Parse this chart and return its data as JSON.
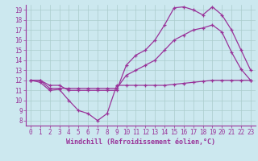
{
  "background_color": "#cce8ef",
  "grid_color": "#aacccc",
  "line_color": "#993399",
  "xlabel": "Windchill (Refroidissement éolien,°C)",
  "xlim": [
    -0.5,
    23.5
  ],
  "ylim": [
    7.5,
    19.5
  ],
  "yticks": [
    8,
    9,
    10,
    11,
    12,
    13,
    14,
    15,
    16,
    17,
    18,
    19
  ],
  "xticks": [
    0,
    1,
    2,
    3,
    4,
    5,
    6,
    7,
    8,
    9,
    10,
    11,
    12,
    13,
    14,
    15,
    16,
    17,
    18,
    19,
    20,
    21,
    22,
    23
  ],
  "line1_x": [
    0,
    1,
    2,
    3,
    4,
    5,
    6,
    7,
    8,
    9,
    10,
    11,
    12,
    13,
    14,
    15,
    16,
    17,
    18,
    19,
    20,
    21,
    22,
    23
  ],
  "line1_y": [
    12,
    11.8,
    11,
    11.1,
    10,
    9,
    8.7,
    8,
    8.7,
    11.5,
    11.5,
    11.5,
    11.5,
    11.5,
    11.5,
    11.6,
    11.7,
    11.8,
    11.9,
    12.0,
    12.0,
    12.0,
    12.0,
    12.0
  ],
  "line2_x": [
    0,
    1,
    2,
    3,
    4,
    5,
    6,
    7,
    8,
    9,
    10,
    11,
    12,
    13,
    14,
    15,
    16,
    17,
    18,
    19,
    20,
    21,
    22,
    23
  ],
  "line2_y": [
    12,
    12,
    11.2,
    11.2,
    11.2,
    11.2,
    11.2,
    11.2,
    11.2,
    11.2,
    12.5,
    13.0,
    13.5,
    14.0,
    15.0,
    16.0,
    16.5,
    17.0,
    17.2,
    17.5,
    16.8,
    14.8,
    13.1,
    12.0
  ],
  "line3_x": [
    0,
    1,
    2,
    3,
    4,
    5,
    6,
    7,
    8,
    9,
    10,
    11,
    12,
    13,
    14,
    15,
    16,
    17,
    18,
    19,
    20,
    21,
    22,
    23
  ],
  "line3_y": [
    12,
    12,
    11.5,
    11.5,
    11,
    11,
    11,
    11,
    11,
    11,
    13.5,
    14.5,
    15.0,
    16.0,
    17.5,
    19.2,
    19.3,
    19.0,
    18.5,
    19.3,
    18.5,
    17.0,
    15.0,
    13.0
  ],
  "marker": "+",
  "markersize": 3,
  "linewidth": 0.9,
  "tick_fontsize": 5.5,
  "xlabel_fontsize": 6.0
}
